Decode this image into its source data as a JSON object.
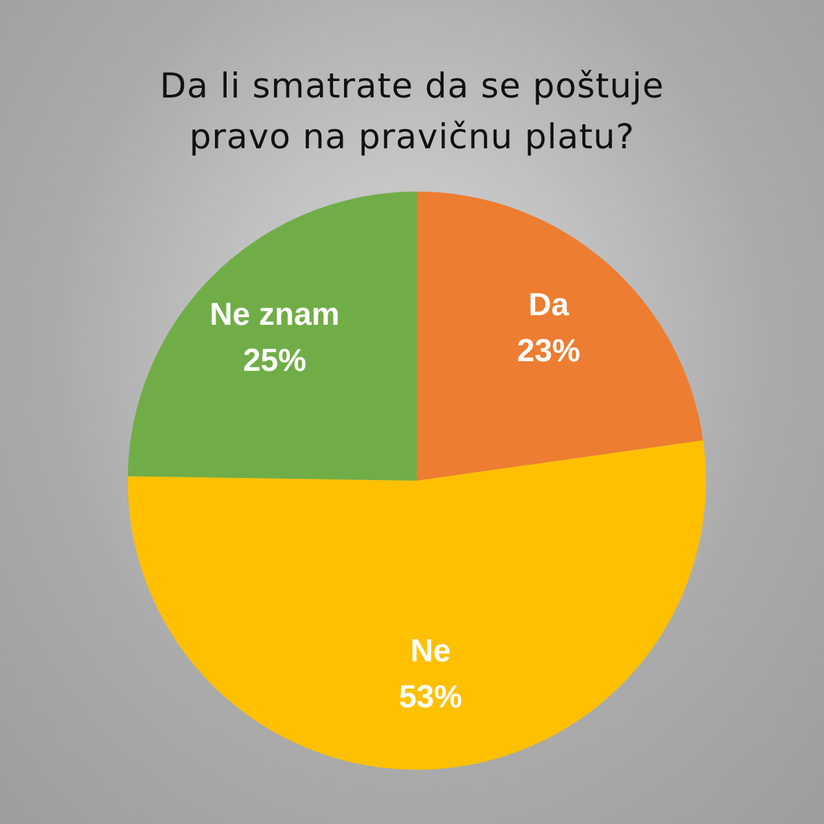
{
  "chart_data": {
    "type": "pie",
    "title_lines": [
      "Da li smatrate da se poštuje",
      "pravo na pravičnu platu?"
    ],
    "slices": [
      {
        "label": "Da",
        "value": 23,
        "value_label": "23%",
        "color": "#ED7D31"
      },
      {
        "label": "Ne",
        "value": 53,
        "value_label": "53%",
        "color": "#FFC000"
      },
      {
        "label": "Ne znam",
        "value": 25,
        "value_label": "25%",
        "color": "#70AD47"
      }
    ],
    "start_angle_deg": 0,
    "direction": "clockwise",
    "legend": "none"
  }
}
